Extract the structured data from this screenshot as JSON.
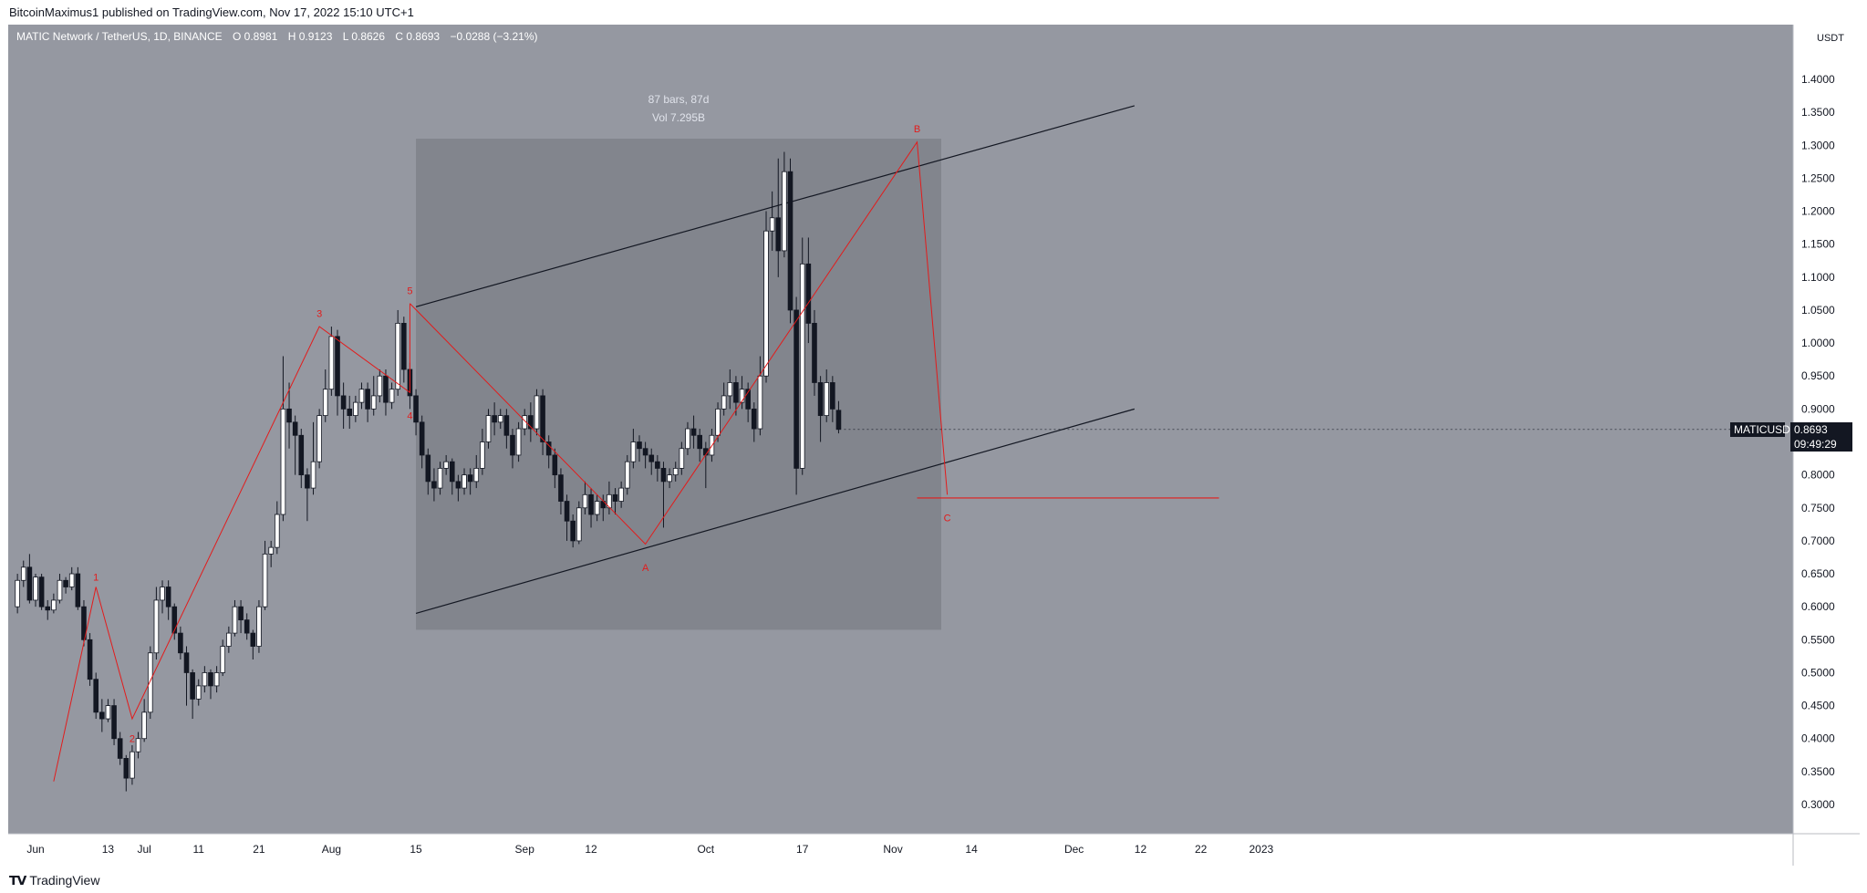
{
  "header": {
    "publisher_text": "BitcoinMaximus1 published on TradingView.com, Nov 17, 2022 15:10 UTC+1"
  },
  "legend": {
    "symbol": "MATIC Network / TetherUS, 1D, BINANCE",
    "o_label": "O",
    "o_value": "0.8981",
    "h_label": "H",
    "h_value": "0.9123",
    "l_label": "L",
    "l_value": "0.8626",
    "c_label": "C",
    "c_value": "0.8693",
    "change": "−0.0288 (−3.21%)"
  },
  "price_badge": {
    "symbol": "MATICUSDT",
    "price": "0.8693",
    "countdown": "09:49:29"
  },
  "footer": {
    "brand": "TradingView",
    "logo": "tradingview-logo-icon"
  },
  "colors": {
    "chart_bg": "#9598a1",
    "range_box": "#7f8189",
    "bull": "#ffffff",
    "bear": "#131722",
    "wave": "#e31b1b",
    "channel": "#131722"
  },
  "chart_data": {
    "type": "candlestick",
    "y_unit": "USDT",
    "ylim": [
      0.26,
      1.45
    ],
    "y_ticks": [
      "0.3000",
      "0.3500",
      "0.4000",
      "0.4500",
      "0.5000",
      "0.5500",
      "0.6000",
      "0.6500",
      "0.7000",
      "0.7500",
      "0.8000",
      "0.8500",
      "0.9000",
      "0.9500",
      "1.0000",
      "1.0500",
      "1.1000",
      "1.1500",
      "1.2000",
      "1.2500",
      "1.3000",
      "1.3500",
      "1.4000"
    ],
    "x_ticks": [
      {
        "label": "Jun",
        "day": -16
      },
      {
        "label": "13",
        "day": -4
      },
      {
        "label": "Jul",
        "day": 2
      },
      {
        "label": "11",
        "day": 11
      },
      {
        "label": "21",
        "day": 21
      },
      {
        "label": "Aug",
        "day": 33
      },
      {
        "label": "15",
        "day": 47
      },
      {
        "label": "Sep",
        "day": 65
      },
      {
        "label": "12",
        "day": 76
      },
      {
        "label": "Oct",
        "day": 95
      },
      {
        "label": "17",
        "day": 111
      },
      {
        "label": "Nov",
        "day": 126
      },
      {
        "label": "14",
        "day": 139
      },
      {
        "label": "Dec",
        "day": 156
      },
      {
        "label": "12",
        "day": 167
      },
      {
        "label": "22",
        "day": 177
      },
      {
        "label": "2023",
        "day": 187
      }
    ],
    "grid": false,
    "candles": {
      "start_day": -19,
      "ohlc": [
        [
          0.6,
          0.64,
          0.59,
          0.65
        ],
        [
          0.64,
          0.66,
          0.63,
          0.67
        ],
        [
          0.66,
          0.61,
          0.605,
          0.68
        ],
        [
          0.61,
          0.645,
          0.6,
          0.65
        ],
        [
          0.645,
          0.6,
          0.595,
          0.65
        ],
        [
          0.6,
          0.595,
          0.58,
          0.61
        ],
        [
          0.595,
          0.61,
          0.59,
          0.62
        ],
        [
          0.61,
          0.64,
          0.605,
          0.65
        ],
        [
          0.64,
          0.63,
          0.62,
          0.645
        ],
        [
          0.63,
          0.65,
          0.625,
          0.66
        ],
        [
          0.65,
          0.6,
          0.595,
          0.66
        ],
        [
          0.6,
          0.55,
          0.54,
          0.61
        ],
        [
          0.55,
          0.49,
          0.48,
          0.56
        ],
        [
          0.49,
          0.44,
          0.43,
          0.5
        ],
        [
          0.44,
          0.43,
          0.41,
          0.46
        ],
        [
          0.43,
          0.45,
          0.425,
          0.46
        ],
        [
          0.45,
          0.4,
          0.39,
          0.46
        ],
        [
          0.4,
          0.37,
          0.36,
          0.41
        ],
        [
          0.37,
          0.34,
          0.32,
          0.375
        ],
        [
          0.34,
          0.38,
          0.33,
          0.39
        ],
        [
          0.38,
          0.4,
          0.37,
          0.41
        ],
        [
          0.4,
          0.44,
          0.395,
          0.46
        ],
        [
          0.44,
          0.53,
          0.43,
          0.54
        ],
        [
          0.53,
          0.61,
          0.52,
          0.63
        ],
        [
          0.61,
          0.63,
          0.59,
          0.64
        ],
        [
          0.63,
          0.6,
          0.58,
          0.64
        ],
        [
          0.6,
          0.56,
          0.55,
          0.605
        ],
        [
          0.56,
          0.53,
          0.52,
          0.57
        ],
        [
          0.53,
          0.5,
          0.45,
          0.54
        ],
        [
          0.5,
          0.46,
          0.43,
          0.505
        ],
        [
          0.46,
          0.48,
          0.45,
          0.49
        ],
        [
          0.48,
          0.5,
          0.47,
          0.51
        ],
        [
          0.5,
          0.48,
          0.46,
          0.505
        ],
        [
          0.48,
          0.5,
          0.47,
          0.51
        ],
        [
          0.5,
          0.54,
          0.495,
          0.55
        ],
        [
          0.54,
          0.56,
          0.53,
          0.57
        ],
        [
          0.56,
          0.6,
          0.555,
          0.61
        ],
        [
          0.6,
          0.58,
          0.56,
          0.61
        ],
        [
          0.58,
          0.56,
          0.55,
          0.59
        ],
        [
          0.56,
          0.54,
          0.52,
          0.565
        ],
        [
          0.54,
          0.6,
          0.53,
          0.61
        ],
        [
          0.6,
          0.68,
          0.595,
          0.7
        ],
        [
          0.68,
          0.69,
          0.66,
          0.7
        ],
        [
          0.69,
          0.74,
          0.68,
          0.76
        ],
        [
          0.74,
          0.9,
          0.73,
          0.98
        ],
        [
          0.9,
          0.88,
          0.84,
          0.94
        ],
        [
          0.88,
          0.86,
          0.8,
          0.89
        ],
        [
          0.86,
          0.8,
          0.78,
          0.87
        ],
        [
          0.8,
          0.78,
          0.73,
          0.81
        ],
        [
          0.78,
          0.82,
          0.77,
          0.88
        ],
        [
          0.82,
          0.89,
          0.81,
          0.9
        ],
        [
          0.89,
          0.93,
          0.88,
          0.96
        ],
        [
          0.93,
          1.01,
          0.92,
          1.025
        ],
        [
          1.01,
          0.92,
          0.89,
          1.02
        ],
        [
          0.92,
          0.9,
          0.87,
          0.94
        ],
        [
          0.9,
          0.89,
          0.87,
          0.92
        ],
        [
          0.89,
          0.91,
          0.88,
          0.92
        ],
        [
          0.91,
          0.93,
          0.9,
          0.94
        ],
        [
          0.93,
          0.9,
          0.88,
          0.94
        ],
        [
          0.9,
          0.92,
          0.89,
          0.95
        ],
        [
          0.92,
          0.95,
          0.91,
          0.96
        ],
        [
          0.95,
          0.91,
          0.89,
          0.96
        ],
        [
          0.91,
          0.93,
          0.9,
          0.94
        ],
        [
          0.93,
          1.03,
          0.92,
          1.05
        ],
        [
          1.03,
          0.96,
          0.94,
          1.04
        ],
        [
          0.96,
          0.92,
          0.9,
          0.97
        ],
        [
          0.92,
          0.88,
          0.86,
          0.93
        ],
        [
          0.88,
          0.83,
          0.81,
          0.89
        ],
        [
          0.83,
          0.79,
          0.77,
          0.84
        ],
        [
          0.79,
          0.78,
          0.76,
          0.81
        ],
        [
          0.78,
          0.81,
          0.77,
          0.82
        ],
        [
          0.81,
          0.82,
          0.8,
          0.83
        ],
        [
          0.82,
          0.79,
          0.77,
          0.825
        ],
        [
          0.79,
          0.78,
          0.76,
          0.8
        ],
        [
          0.78,
          0.8,
          0.77,
          0.81
        ],
        [
          0.8,
          0.79,
          0.77,
          0.81
        ],
        [
          0.79,
          0.81,
          0.78,
          0.83
        ],
        [
          0.81,
          0.85,
          0.8,
          0.87
        ],
        [
          0.85,
          0.89,
          0.84,
          0.9
        ],
        [
          0.89,
          0.88,
          0.86,
          0.91
        ],
        [
          0.88,
          0.89,
          0.87,
          0.9
        ],
        [
          0.89,
          0.86,
          0.84,
          0.9
        ],
        [
          0.86,
          0.83,
          0.81,
          0.87
        ],
        [
          0.83,
          0.87,
          0.82,
          0.88
        ],
        [
          0.87,
          0.89,
          0.86,
          0.9
        ],
        [
          0.89,
          0.87,
          0.85,
          0.91
        ],
        [
          0.87,
          0.92,
          0.86,
          0.93
        ],
        [
          0.92,
          0.85,
          0.83,
          0.93
        ],
        [
          0.85,
          0.83,
          0.81,
          0.86
        ],
        [
          0.83,
          0.8,
          0.78,
          0.84
        ],
        [
          0.8,
          0.76,
          0.74,
          0.81
        ],
        [
          0.76,
          0.73,
          0.7,
          0.77
        ],
        [
          0.73,
          0.7,
          0.69,
          0.74
        ],
        [
          0.7,
          0.75,
          0.695,
          0.76
        ],
        [
          0.75,
          0.77,
          0.74,
          0.79
        ],
        [
          0.77,
          0.74,
          0.72,
          0.78
        ],
        [
          0.74,
          0.76,
          0.73,
          0.77
        ],
        [
          0.76,
          0.75,
          0.73,
          0.77
        ],
        [
          0.75,
          0.77,
          0.74,
          0.79
        ],
        [
          0.77,
          0.76,
          0.74,
          0.78
        ],
        [
          0.76,
          0.78,
          0.75,
          0.79
        ],
        [
          0.78,
          0.82,
          0.77,
          0.83
        ],
        [
          0.82,
          0.85,
          0.81,
          0.87
        ],
        [
          0.85,
          0.84,
          0.82,
          0.86
        ],
        [
          0.84,
          0.83,
          0.81,
          0.85
        ],
        [
          0.83,
          0.82,
          0.8,
          0.84
        ],
        [
          0.82,
          0.81,
          0.79,
          0.83
        ],
        [
          0.81,
          0.79,
          0.72,
          0.82
        ],
        [
          0.79,
          0.8,
          0.78,
          0.81
        ],
        [
          0.8,
          0.81,
          0.79,
          0.82
        ],
        [
          0.81,
          0.84,
          0.8,
          0.85
        ],
        [
          0.84,
          0.87,
          0.83,
          0.88
        ],
        [
          0.87,
          0.86,
          0.84,
          0.89
        ],
        [
          0.86,
          0.84,
          0.82,
          0.87
        ],
        [
          0.84,
          0.83,
          0.78,
          0.85
        ],
        [
          0.83,
          0.86,
          0.82,
          0.87
        ],
        [
          0.86,
          0.9,
          0.85,
          0.91
        ],
        [
          0.9,
          0.92,
          0.89,
          0.94
        ],
        [
          0.92,
          0.94,
          0.9,
          0.96
        ],
        [
          0.94,
          0.91,
          0.89,
          0.95
        ],
        [
          0.91,
          0.93,
          0.9,
          0.95
        ],
        [
          0.93,
          0.9,
          0.88,
          0.94
        ],
        [
          0.9,
          0.87,
          0.85,
          0.91
        ],
        [
          0.87,
          0.95,
          0.86,
          0.98
        ],
        [
          0.95,
          1.17,
          0.94,
          1.2
        ],
        [
          1.17,
          1.19,
          1.14,
          1.23
        ],
        [
          1.19,
          1.14,
          1.1,
          1.28
        ],
        [
          1.14,
          1.26,
          1.13,
          1.29
        ],
        [
          1.26,
          1.05,
          1.03,
          1.28
        ],
        [
          1.05,
          0.81,
          0.77,
          1.07
        ],
        [
          0.81,
          1.12,
          0.8,
          1.16
        ],
        [
          1.12,
          1.03,
          1.0,
          1.16
        ],
        [
          1.03,
          0.94,
          0.92,
          1.05
        ],
        [
          0.94,
          0.89,
          0.85,
          0.95
        ],
        [
          0.89,
          0.94,
          0.88,
          0.96
        ],
        [
          0.94,
          0.9,
          0.88,
          0.95
        ],
        [
          0.898,
          0.869,
          0.863,
          0.912
        ]
      ]
    },
    "annotations": {
      "range_label_1": "87 bars, 87d",
      "range_label_2": "Vol 7.295B",
      "range": {
        "day_start": 47,
        "day_end": 134,
        "price_low": 0.565,
        "price_high": 1.31
      },
      "wave_labels": [
        {
          "text": "1",
          "day": -6
        },
        {
          "text": "2",
          "day": 0
        },
        {
          "text": "3",
          "day": 31
        },
        {
          "text": "4",
          "day": 46
        },
        {
          "text": "5",
          "day": 46
        },
        {
          "text": "A",
          "day": 85
        },
        {
          "text": "B",
          "day": 130
        },
        {
          "text": "C",
          "day": 135
        }
      ],
      "wave_path_1": [
        {
          "day": -13,
          "price": 0.335
        },
        {
          "day": -6,
          "price": 0.63
        },
        {
          "day": 0,
          "price": 0.43
        },
        {
          "day": 31,
          "price": 1.025
        },
        {
          "day": 46,
          "price": 0.925
        },
        {
          "day": 46,
          "price": 1.06
        }
      ],
      "wave_path_2": [
        {
          "day": 46,
          "price": 1.06
        },
        {
          "day": 85,
          "price": 0.695
        },
        {
          "day": 130,
          "price": 1.305
        },
        {
          "day": 135,
          "price": 0.77
        }
      ],
      "support_price": 0.765,
      "support_days": [
        130,
        180
      ],
      "channel_upper": [
        {
          "day": 47,
          "price": 1.055
        },
        {
          "day": 166,
          "price": 1.36
        }
      ],
      "channel_lower": [
        {
          "day": 47,
          "price": 0.59
        },
        {
          "day": 166,
          "price": 0.9
        }
      ]
    }
  }
}
